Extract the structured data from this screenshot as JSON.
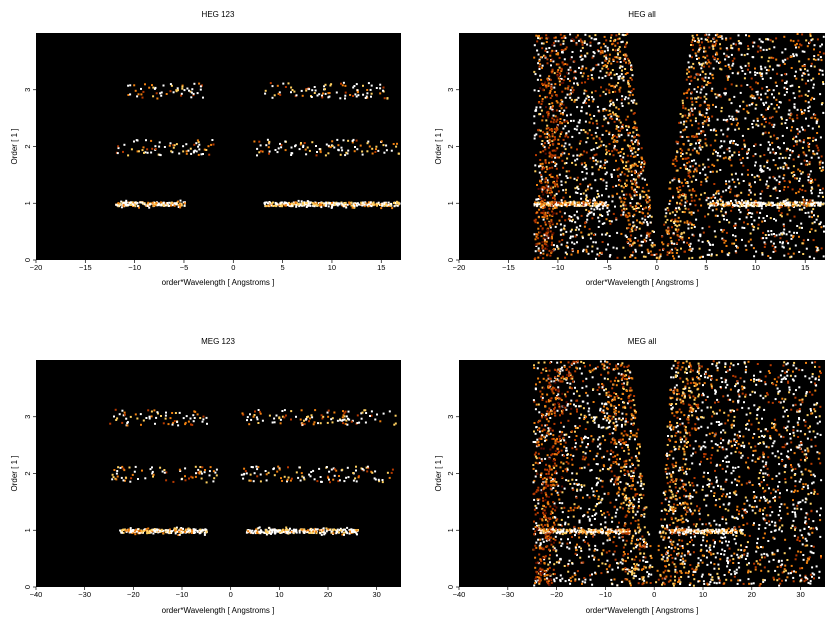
{
  "chart_data": [
    {
      "type": "heatmap",
      "title": "HEG 123",
      "xlabel": "order*Wavelength [ Angstroms ]",
      "ylabel": "Order [ 1 ]",
      "xlim": [
        -20,
        17
      ],
      "ylim": [
        0,
        4
      ],
      "x_ticks": [
        -20,
        -15,
        -10,
        -5,
        0,
        5,
        10,
        15
      ],
      "y_ticks": [
        0,
        1,
        2,
        3
      ],
      "background": "#000000",
      "colormap": [
        "#000000",
        "#5a0a00",
        "#b83a00",
        "#f08010",
        "#ffd060",
        "#ffffff"
      ],
      "grid": false,
      "features": [
        {
          "kind": "band",
          "order": 1,
          "x_ranges": [
            [
              -12,
              -5
            ],
            [
              3,
              16.8
            ]
          ],
          "density": "high"
        },
        {
          "kind": "band",
          "order": 2,
          "x_ranges": [
            [
              -12,
              -2
            ],
            [
              2,
              16.8
            ]
          ],
          "density": "low"
        },
        {
          "kind": "band",
          "order": 3,
          "x_ranges": [
            [
              -11,
              -3
            ],
            [
              3,
              16
            ]
          ],
          "density": "low"
        }
      ]
    },
    {
      "type": "heatmap",
      "title": "HEG all",
      "xlabel": "order*Wavelength [ Angstroms ]",
      "ylabel": "Order [ 1 ]",
      "xlim": [
        -20,
        17
      ],
      "ylim": [
        0,
        4
      ],
      "x_ticks": [
        -20,
        -15,
        -10,
        -5,
        0,
        5,
        10,
        15
      ],
      "y_ticks": [
        0,
        1,
        2,
        3
      ],
      "background": "#000000",
      "colormap": [
        "#000000",
        "#5a0a00",
        "#b83a00",
        "#f08010",
        "#ffd060",
        "#ffffff"
      ],
      "grid": false,
      "features": [
        {
          "kind": "band",
          "order": 1,
          "x_ranges": [
            [
              -12.5,
              -5
            ],
            [
              5,
              16.8
            ]
          ],
          "density": "high"
        },
        {
          "kind": "noise",
          "x_range": [
            -12.5,
            16.8
          ],
          "density": "high"
        },
        {
          "kind": "empty_wedge",
          "vertex_x": 0,
          "top_x_range": [
            -3,
            3.5
          ]
        }
      ]
    },
    {
      "type": "heatmap",
      "title": "MEG 123",
      "xlabel": "order*Wavelength [ Angstroms ]",
      "ylabel": "Order [ 1 ]",
      "xlim": [
        -40,
        35
      ],
      "ylim": [
        0,
        4
      ],
      "x_ticks": [
        -40,
        -30,
        -20,
        -10,
        0,
        10,
        20,
        30
      ],
      "y_ticks": [
        0,
        1,
        2,
        3
      ],
      "background": "#000000",
      "colormap": [
        "#000000",
        "#5a0a00",
        "#b83a00",
        "#f08010",
        "#ffd060",
        "#ffffff"
      ],
      "grid": false,
      "features": [
        {
          "kind": "band",
          "order": 1,
          "x_ranges": [
            [
              -23,
              -5
            ],
            [
              3,
              26
            ]
          ],
          "density": "high"
        },
        {
          "kind": "band",
          "order": 2,
          "x_ranges": [
            [
              -25,
              -3
            ],
            [
              2,
              34
            ]
          ],
          "density": "low"
        },
        {
          "kind": "band",
          "order": 3,
          "x_ranges": [
            [
              -25,
              -5
            ],
            [
              2,
              34
            ]
          ],
          "density": "low"
        }
      ]
    },
    {
      "type": "heatmap",
      "title": "MEG all",
      "xlabel": "order*Wavelength [ Angstroms ]",
      "ylabel": "Order [ 1 ]",
      "xlim": [
        -40,
        35
      ],
      "ylim": [
        0,
        4
      ],
      "x_ticks": [
        -40,
        -30,
        -20,
        -10,
        0,
        10,
        20,
        30
      ],
      "y_ticks": [
        0,
        1,
        2,
        3
      ],
      "background": "#000000",
      "colormap": [
        "#000000",
        "#5a0a00",
        "#b83a00",
        "#f08010",
        "#ffd060",
        "#ffffff"
      ],
      "grid": false,
      "features": [
        {
          "kind": "band",
          "order": 1,
          "x_ranges": [
            [
              -24,
              -5
            ],
            [
              3,
              18
            ]
          ],
          "density": "high"
        },
        {
          "kind": "noise",
          "x_range": [
            -25,
            34
          ],
          "density": "high"
        },
        {
          "kind": "empty_wedge",
          "vertex_x": 0,
          "top_x_range": [
            -5,
            3.5
          ]
        }
      ]
    }
  ]
}
